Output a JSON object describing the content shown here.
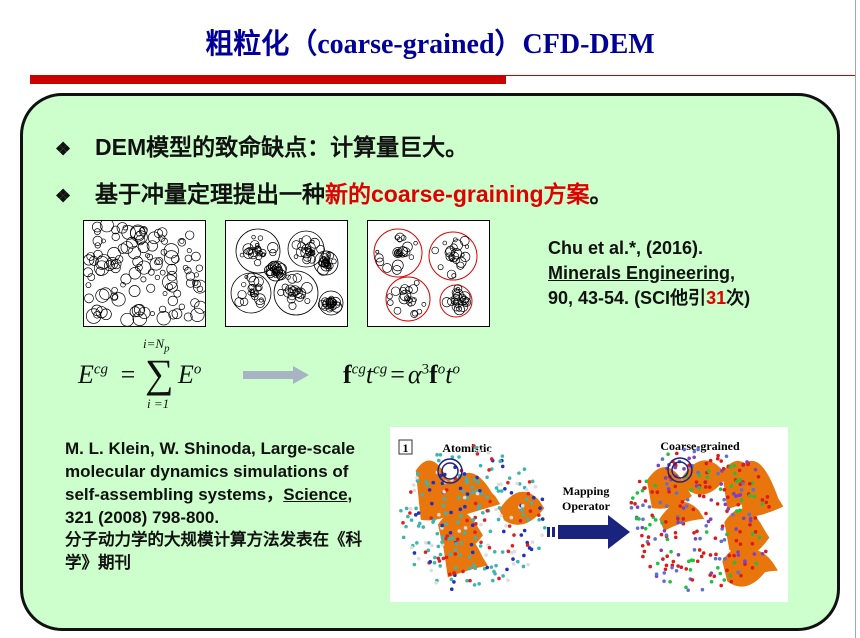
{
  "title": "粗粒化（coarse-grained）CFD-DEM",
  "bullets": [
    {
      "icon": "diamond-bullet",
      "symbol": "❖",
      "text": "DEM模型的致命缺点：计算量巨大。"
    },
    {
      "icon": "diamond-bullet",
      "symbol": "❖",
      "text_pre": "基于冲量定理提出一种",
      "text_red": "新的coarse-graining方案",
      "text_post": "。"
    }
  ],
  "colors": {
    "title": "#000099",
    "accent_red": "#cc0000",
    "highlight": "#e00000",
    "panel": "#ccffcc"
  },
  "citation": {
    "line1": "Chu et al.*, (2016).",
    "journal": "Minerals Engineering",
    "line3": "90, 43-54. (SCI他引",
    "count": "31",
    "line3_post": "次)"
  },
  "equations": {
    "eq1": {
      "lhs": "E",
      "lhs_sup": "cg",
      "eq": "=",
      "sum_top": "i=N",
      "sum_top_sub": "p",
      "sum": "∑",
      "sum_bottom": "i =1",
      "rhs": "E",
      "rhs_sup": "o"
    },
    "eq2": {
      "f": "f",
      "cg": "cg",
      "t": "t",
      "eq": "=",
      "alpha": "α",
      "three": "3",
      "o": "o"
    }
  },
  "reference": {
    "text": "M. L. Klein, W. Shinoda, Large-scale molecular dynamics simulations of self-assembling systems，",
    "journal": "Science",
    "rest": ", 321 (2008) 798-800.",
    "cn": "分子动力学的大规模计算方法发表在《科学》期刊"
  },
  "figure": {
    "panel_num": "1",
    "left_label": "Atomistic",
    "right_label": "Coarse-grained",
    "arrow_label1": "Mapping",
    "arrow_label2": "Operator"
  }
}
